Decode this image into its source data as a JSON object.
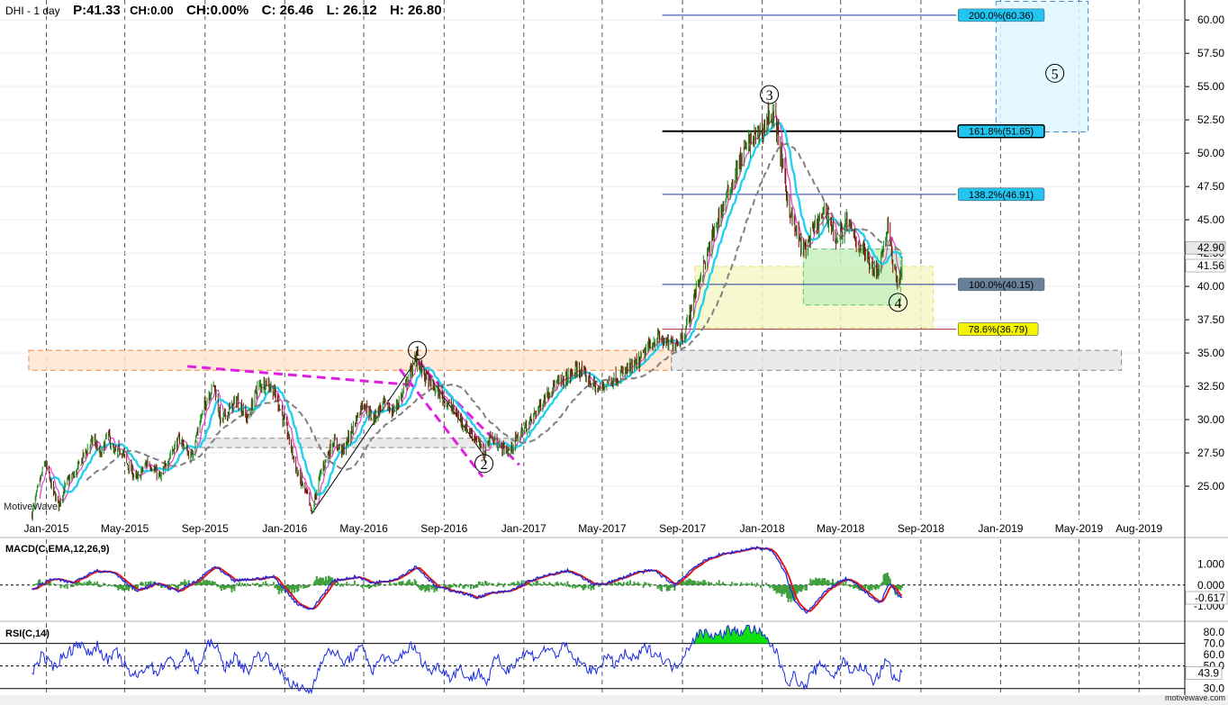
{
  "header": {
    "symbol": "DHI - 1 day",
    "price": "P:41.33",
    "change": "CH:0.00",
    "change_pct": "CH:0.00%",
    "close": "C: 26.46",
    "low": "L: 26.12",
    "high": "H: 26.80"
  },
  "watermark": "MotiveWave",
  "watermark_small": "motivewave.com",
  "indicators": {
    "macd_label": "MACD(C,EMA,12,26,9)",
    "rsi_label": "RSI(C,14)"
  },
  "chart_data": [
    {
      "type": "candlestick",
      "title": "DHI - 1 day",
      "x_axis": {
        "tick_labels": [
          "Jan-2015",
          "May-2015",
          "Sep-2015",
          "Jan-2016",
          "May-2016",
          "Sep-2016",
          "Jan-2017",
          "May-2017",
          "Sep-2017",
          "Jan-2018",
          "May-2018",
          "Sep-2018",
          "Jan-2019",
          "May-2019",
          "Aug-2019"
        ]
      },
      "y_axis": {
        "range": [
          22.5,
          61.5
        ],
        "ticks": [
          "60.00",
          "57.50",
          "55.00",
          "52.50",
          "50.00",
          "47.50",
          "45.00",
          "42.50",
          "40.00",
          "37.50",
          "35.00",
          "32.50",
          "30.00",
          "27.50",
          "25.00"
        ],
        "price_tags": [
          "42.90",
          "41.56"
        ]
      },
      "grid": true,
      "price_path": [
        [
          "2014-12-10",
          22.9
        ],
        [
          "2014-12-20",
          25.0
        ],
        [
          "2014-12-30",
          26.8
        ],
        [
          "2015-01-10",
          24.8
        ],
        [
          "2015-01-20",
          23.6
        ],
        [
          "2015-02-01",
          25.3
        ],
        [
          "2015-02-15",
          26.0
        ],
        [
          "2015-03-01",
          27.5
        ],
        [
          "2015-03-15",
          28.6
        ],
        [
          "2015-03-25",
          27.2
        ],
        [
          "2015-04-05",
          29.0
        ],
        [
          "2015-04-15",
          27.4
        ],
        [
          "2015-04-25",
          27.9
        ],
        [
          "2015-05-05",
          26.6
        ],
        [
          "2015-05-20",
          25.5
        ],
        [
          "2015-06-05",
          26.9
        ],
        [
          "2015-06-25",
          25.6
        ],
        [
          "2015-07-10",
          27.5
        ],
        [
          "2015-07-25",
          28.6
        ],
        [
          "2015-08-10",
          27.1
        ],
        [
          "2015-08-25",
          30.0
        ],
        [
          "2015-09-05",
          31.8
        ],
        [
          "2015-09-15",
          32.6
        ],
        [
          "2015-09-25",
          29.8
        ],
        [
          "2015-10-05",
          30.5
        ],
        [
          "2015-10-20",
          31.5
        ],
        [
          "2015-11-05",
          30.0
        ],
        [
          "2015-11-20",
          32.4
        ],
        [
          "2015-12-05",
          32.9
        ],
        [
          "2015-12-20",
          31.6
        ],
        [
          "2016-01-05",
          29.0
        ],
        [
          "2016-01-20",
          26.0
        ],
        [
          "2016-02-05",
          24.2
        ],
        [
          "2016-02-11",
          22.9
        ],
        [
          "2016-02-25",
          26.0
        ],
        [
          "2016-03-15",
          28.4
        ],
        [
          "2016-03-30",
          27.6
        ],
        [
          "2016-04-15",
          29.5
        ],
        [
          "2016-04-30",
          31.4
        ],
        [
          "2016-05-15",
          30.0
        ],
        [
          "2016-05-30",
          31.2
        ],
        [
          "2016-06-15",
          30.6
        ],
        [
          "2016-06-30",
          32.0
        ],
        [
          "2016-07-10",
          33.4
        ],
        [
          "2016-07-20",
          34.6
        ],
        [
          "2016-07-25",
          34.1
        ],
        [
          "2016-08-05",
          33.0
        ],
        [
          "2016-08-20",
          32.2
        ],
        [
          "2016-09-05",
          31.3
        ],
        [
          "2016-09-20",
          30.4
        ],
        [
          "2016-10-05",
          29.4
        ],
        [
          "2016-10-20",
          28.6
        ],
        [
          "2016-11-01",
          27.3
        ],
        [
          "2016-11-10",
          28.8
        ],
        [
          "2016-11-25",
          28.0
        ],
        [
          "2016-12-10",
          27.6
        ],
        [
          "2016-12-25",
          28.9
        ],
        [
          "2017-01-10",
          29.8
        ],
        [
          "2017-01-25",
          31.0
        ],
        [
          "2017-02-10",
          32.3
        ],
        [
          "2017-02-25",
          32.8
        ],
        [
          "2017-03-10",
          33.2
        ],
        [
          "2017-03-25",
          33.8
        ],
        [
          "2017-04-10",
          33.0
        ],
        [
          "2017-04-25",
          32.2
        ],
        [
          "2017-05-10",
          32.9
        ],
        [
          "2017-05-25",
          33.2
        ],
        [
          "2017-06-10",
          33.8
        ],
        [
          "2017-06-25",
          34.2
        ],
        [
          "2017-07-10",
          35.4
        ],
        [
          "2017-07-25",
          36.2
        ],
        [
          "2017-08-10",
          35.6
        ],
        [
          "2017-08-25",
          35.9
        ],
        [
          "2017-09-05",
          36.6
        ],
        [
          "2017-09-15",
          38.5
        ],
        [
          "2017-09-25",
          40.3
        ],
        [
          "2017-10-10",
          42.5
        ],
        [
          "2017-10-25",
          45.0
        ],
        [
          "2017-11-10",
          47.0
        ],
        [
          "2017-11-25",
          49.0
        ],
        [
          "2017-12-10",
          50.7
        ],
        [
          "2017-12-25",
          51.4
        ],
        [
          "2018-01-05",
          52.0
        ],
        [
          "2018-01-12",
          53.1
        ],
        [
          "2018-01-22",
          52.3
        ],
        [
          "2018-02-01",
          49.0
        ],
        [
          "2018-02-10",
          46.2
        ],
        [
          "2018-02-20",
          44.3
        ],
        [
          "2018-03-05",
          42.6
        ],
        [
          "2018-03-15",
          43.6
        ],
        [
          "2018-03-25",
          44.6
        ],
        [
          "2018-04-10",
          45.6
        ],
        [
          "2018-04-25",
          43.4
        ],
        [
          "2018-05-10",
          44.9
        ],
        [
          "2018-05-25",
          43.4
        ],
        [
          "2018-06-10",
          42.3
        ],
        [
          "2018-06-25",
          41.0
        ],
        [
          "2018-07-05",
          42.8
        ],
        [
          "2018-07-12",
          44.4
        ],
        [
          "2018-07-20",
          41.8
        ],
        [
          "2018-07-28",
          40.2
        ],
        [
          "2018-08-03",
          41.3
        ]
      ],
      "moving_averages": [
        {
          "name": "fast",
          "color": "#e040d0"
        },
        {
          "name": "medium",
          "color": "#22d0f0"
        },
        {
          "name": "slow",
          "color": "#808080",
          "style": "dashed"
        }
      ],
      "wave_labels": [
        {
          "label": "1",
          "date": "2016-07-22",
          "price": 35.2
        },
        {
          "label": "2",
          "date": "2016-11-01",
          "price": 26.7
        },
        {
          "label": "3",
          "date": "2018-01-12",
          "price": 54.4
        },
        {
          "label": "4",
          "date": "2018-07-28",
          "price": 38.8
        },
        {
          "label": "5",
          "date": "2019-03-25",
          "price": 56.0
        }
      ],
      "fibonacci_levels": [
        {
          "label": "200.0%(60.36)",
          "price": 60.36,
          "fill": "#22c4f0"
        },
        {
          "label": "161.8%(51.65)",
          "price": 51.65,
          "fill": "#22c4f0"
        },
        {
          "label": "138.2%(46.91)",
          "price": 46.91,
          "fill": "#22c4f0"
        },
        {
          "label": "100.0%(40.15)",
          "price": 40.15,
          "fill": "#6a7f9a"
        },
        {
          "label": "78.6%(36.79)",
          "price": 36.79,
          "fill": "#f5f500"
        }
      ],
      "zones": [
        {
          "name": "resistance",
          "from": "2014-12-05",
          "to": "2017-08-15",
          "low": 33.7,
          "high": 35.2,
          "fill": "#ffe6d2",
          "stroke": "#f08a40"
        },
        {
          "name": "support-extension",
          "from": "2017-08-15",
          "to": "2019-07-05",
          "low": 33.7,
          "high": 35.2,
          "fill": "#e6e6e6",
          "stroke": "#888888"
        },
        {
          "name": "support-2015",
          "from": "2015-08-20",
          "to": "2016-12-20",
          "low": 27.9,
          "high": 28.6,
          "fill": "#e6e6e6",
          "stroke": "#888888"
        },
        {
          "name": "wave4-target",
          "from": "2017-09-20",
          "to": "2018-09-20",
          "low": 36.9,
          "high": 41.5,
          "fill": "#f5f8c8",
          "stroke": "#e8e060"
        },
        {
          "name": "wave4-box",
          "from": "2018-03-05",
          "to": "2018-08-01",
          "low": 38.6,
          "high": 42.8,
          "fill": "#c8f0c0",
          "stroke": "#60c060"
        },
        {
          "name": "wave5-target",
          "from": "2018-12-25",
          "to": "2019-05-15",
          "low": 51.6,
          "high": 61.4,
          "fill": "#dff7ff",
          "stroke": "#3c8ce0"
        }
      ]
    },
    {
      "type": "line",
      "title": "MACD(C,EMA,12,26,9)",
      "y_axis": {
        "ticks": [
          "1.000",
          "0.000",
          "-1.000"
        ],
        "range": [
          -1.7,
          2.2
        ]
      },
      "value_tag": "-0.617",
      "series": [
        {
          "name": "MACD",
          "color": "#1a2ae0"
        },
        {
          "name": "Signal",
          "color": "#e01818"
        },
        {
          "name": "Histogram",
          "color": "#40a040"
        }
      ],
      "macd_path": [
        [
          "2014-12-10",
          -0.2
        ],
        [
          "2015-01-10",
          0.3
        ],
        [
          "2015-02-10",
          0.1
        ],
        [
          "2015-03-15",
          0.7
        ],
        [
          "2015-04-15",
          0.6
        ],
        [
          "2015-05-20",
          -0.3
        ],
        [
          "2015-06-20",
          0.1
        ],
        [
          "2015-07-20",
          -0.3
        ],
        [
          "2015-08-20",
          0.2
        ],
        [
          "2015-09-15",
          0.9
        ],
        [
          "2015-10-15",
          0.2
        ],
        [
          "2015-11-20",
          0.3
        ],
        [
          "2015-12-15",
          0.4
        ],
        [
          "2016-01-20",
          -0.9
        ],
        [
          "2016-02-11",
          -1.2
        ],
        [
          "2016-03-15",
          0.2
        ],
        [
          "2016-04-20",
          0.4
        ],
        [
          "2016-05-15",
          0.1
        ],
        [
          "2016-06-20",
          0.3
        ],
        [
          "2016-07-20",
          0.9
        ],
        [
          "2016-08-20",
          -0.1
        ],
        [
          "2016-09-20",
          -0.3
        ],
        [
          "2016-10-20",
          -0.6
        ],
        [
          "2016-11-10",
          -0.4
        ],
        [
          "2016-12-10",
          -0.3
        ],
        [
          "2017-01-10",
          0.2
        ],
        [
          "2017-02-10",
          0.5
        ],
        [
          "2017-03-10",
          0.7
        ],
        [
          "2017-04-20",
          0.0
        ],
        [
          "2017-05-20",
          0.2
        ],
        [
          "2017-06-20",
          0.6
        ],
        [
          "2017-07-20",
          0.7
        ],
        [
          "2017-08-20",
          0.0
        ],
        [
          "2017-09-20",
          0.9
        ],
        [
          "2017-10-20",
          1.4
        ],
        [
          "2017-11-20",
          1.6
        ],
        [
          "2017-12-20",
          1.8
        ],
        [
          "2018-01-15",
          1.7
        ],
        [
          "2018-02-05",
          0.6
        ],
        [
          "2018-02-20",
          -0.8
        ],
        [
          "2018-03-10",
          -1.3
        ],
        [
          "2018-03-25",
          -0.8
        ],
        [
          "2018-04-15",
          -0.1
        ],
        [
          "2018-05-10",
          0.3
        ],
        [
          "2018-05-25",
          0.0
        ],
        [
          "2018-06-15",
          -0.5
        ],
        [
          "2018-06-30",
          -0.9
        ],
        [
          "2018-07-15",
          0.1
        ],
        [
          "2018-07-28",
          -0.5
        ],
        [
          "2018-08-03",
          -0.62
        ]
      ]
    },
    {
      "type": "line",
      "title": "RSI(C,14)",
      "y_axis": {
        "ticks": [
          "80.0",
          "70.0",
          "60.0",
          "50.0",
          "30.0"
        ],
        "range": [
          25,
          88
        ]
      },
      "value_tag": "43.9",
      "overbought": 70,
      "oversold": 30,
      "midline": 50,
      "series": [
        {
          "name": "RSI",
          "color": "#1a2ae0"
        }
      ],
      "rsi_path": [
        [
          "2014-12-10",
          45
        ],
        [
          "2014-12-25",
          60
        ],
        [
          "2015-01-10",
          48
        ],
        [
          "2015-01-25",
          58
        ],
        [
          "2015-02-10",
          65
        ],
        [
          "2015-02-20",
          72
        ],
        [
          "2015-03-05",
          60
        ],
        [
          "2015-03-20",
          68
        ],
        [
          "2015-04-05",
          55
        ],
        [
          "2015-04-20",
          62
        ],
        [
          "2015-05-05",
          45
        ],
        [
          "2015-05-20",
          40
        ],
        [
          "2015-06-05",
          52
        ],
        [
          "2015-06-20",
          44
        ],
        [
          "2015-07-05",
          56
        ],
        [
          "2015-07-20",
          50
        ],
        [
          "2015-08-05",
          62
        ],
        [
          "2015-08-20",
          45
        ],
        [
          "2015-09-05",
          68
        ],
        [
          "2015-09-15",
          72
        ],
        [
          "2015-09-30",
          48
        ],
        [
          "2015-10-15",
          58
        ],
        [
          "2015-11-05",
          45
        ],
        [
          "2015-11-20",
          60
        ],
        [
          "2015-12-05",
          58
        ],
        [
          "2015-12-20",
          48
        ],
        [
          "2016-01-05",
          38
        ],
        [
          "2016-01-20",
          30
        ],
        [
          "2016-02-11",
          28
        ],
        [
          "2016-02-25",
          55
        ],
        [
          "2016-03-15",
          65
        ],
        [
          "2016-03-30",
          52
        ],
        [
          "2016-04-15",
          60
        ],
        [
          "2016-04-30",
          66
        ],
        [
          "2016-05-15",
          45
        ],
        [
          "2016-05-30",
          60
        ],
        [
          "2016-06-15",
          50
        ],
        [
          "2016-06-30",
          62
        ],
        [
          "2016-07-15",
          68
        ],
        [
          "2016-07-25",
          58
        ],
        [
          "2016-08-10",
          45
        ],
        [
          "2016-08-25",
          50
        ],
        [
          "2016-09-10",
          40
        ],
        [
          "2016-09-25",
          48
        ],
        [
          "2016-10-10",
          38
        ],
        [
          "2016-10-25",
          45
        ],
        [
          "2016-11-05",
          35
        ],
        [
          "2016-11-20",
          58
        ],
        [
          "2016-12-05",
          45
        ],
        [
          "2016-12-20",
          55
        ],
        [
          "2017-01-05",
          62
        ],
        [
          "2017-01-20",
          58
        ],
        [
          "2017-02-05",
          66
        ],
        [
          "2017-02-20",
          60
        ],
        [
          "2017-03-05",
          68
        ],
        [
          "2017-03-20",
          55
        ],
        [
          "2017-04-05",
          50
        ],
        [
          "2017-04-20",
          44
        ],
        [
          "2017-05-05",
          58
        ],
        [
          "2017-05-20",
          52
        ],
        [
          "2017-06-05",
          60
        ],
        [
          "2017-06-20",
          55
        ],
        [
          "2017-07-05",
          66
        ],
        [
          "2017-07-20",
          62
        ],
        [
          "2017-08-05",
          55
        ],
        [
          "2017-08-20",
          48
        ],
        [
          "2017-09-05",
          62
        ],
        [
          "2017-09-15",
          72
        ],
        [
          "2017-09-25",
          78
        ],
        [
          "2017-10-10",
          80
        ],
        [
          "2017-10-25",
          76
        ],
        [
          "2017-11-10",
          82
        ],
        [
          "2017-11-25",
          79
        ],
        [
          "2017-12-10",
          85
        ],
        [
          "2017-12-25",
          80
        ],
        [
          "2018-01-10",
          72
        ],
        [
          "2018-01-20",
          65
        ],
        [
          "2018-02-01",
          48
        ],
        [
          "2018-02-10",
          35
        ],
        [
          "2018-02-20",
          42
        ],
        [
          "2018-03-05",
          30
        ],
        [
          "2018-03-20",
          45
        ],
        [
          "2018-04-05",
          52
        ],
        [
          "2018-04-20",
          40
        ],
        [
          "2018-05-05",
          55
        ],
        [
          "2018-05-20",
          45
        ],
        [
          "2018-06-05",
          50
        ],
        [
          "2018-06-20",
          35
        ],
        [
          "2018-07-05",
          48
        ],
        [
          "2018-07-12",
          58
        ],
        [
          "2018-07-20",
          40
        ],
        [
          "2018-07-28",
          38
        ],
        [
          "2018-08-03",
          44
        ]
      ]
    }
  ]
}
